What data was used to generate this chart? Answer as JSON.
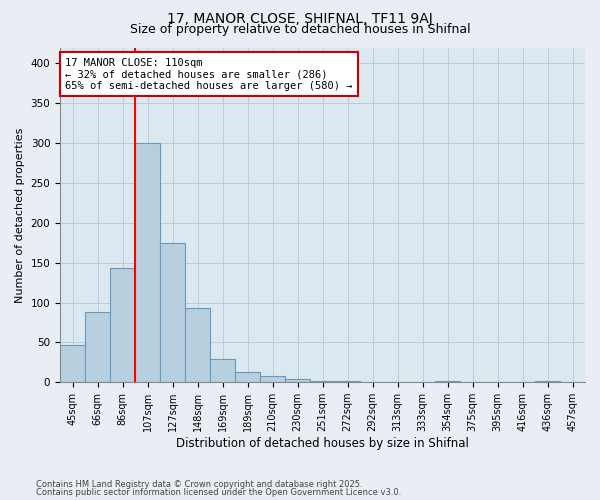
{
  "title1": "17, MANOR CLOSE, SHIFNAL, TF11 9AJ",
  "title2": "Size of property relative to detached houses in Shifnal",
  "xlabel": "Distribution of detached houses by size in Shifnal",
  "ylabel": "Number of detached properties",
  "categories": [
    "45sqm",
    "66sqm",
    "86sqm",
    "107sqm",
    "127sqm",
    "148sqm",
    "169sqm",
    "189sqm",
    "210sqm",
    "230sqm",
    "251sqm",
    "272sqm",
    "292sqm",
    "313sqm",
    "333sqm",
    "354sqm",
    "375sqm",
    "395sqm",
    "416sqm",
    "436sqm",
    "457sqm"
  ],
  "values": [
    47,
    88,
    143,
    300,
    175,
    93,
    29,
    13,
    8,
    4,
    2,
    1,
    0,
    0,
    0,
    1,
    0,
    0,
    0,
    1,
    0
  ],
  "bar_color": "#b8cfe0",
  "bar_edgecolor": "#6699bb",
  "red_line_index": 3,
  "annotation_line1": "17 MANOR CLOSE: 110sqm",
  "annotation_line2": "← 32% of detached houses are smaller (286)",
  "annotation_line3": "65% of semi-detached houses are larger (580) →",
  "annotation_box_facecolor": "#ffffff",
  "annotation_box_edgecolor": "#cc0000",
  "ylim": [
    0,
    420
  ],
  "yticks": [
    0,
    50,
    100,
    150,
    200,
    250,
    300,
    350,
    400
  ],
  "footnote1": "Contains HM Land Registry data © Crown copyright and database right 2025.",
  "footnote2": "Contains public sector information licensed under the Open Government Licence v3.0.",
  "background_color": "#e8eef4",
  "plot_bg_color": "#dce8f0",
  "grid_color": "#b8ccd8",
  "title1_fontsize": 10,
  "title2_fontsize": 9,
  "xlabel_fontsize": 8.5,
  "ylabel_fontsize": 8,
  "tick_fontsize": 7,
  "annot_fontsize": 7.5
}
